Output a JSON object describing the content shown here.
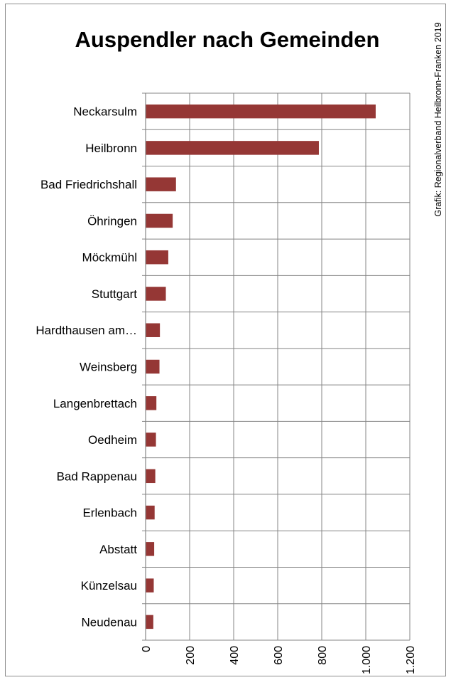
{
  "chart_data": {
    "type": "bar",
    "orientation": "horizontal",
    "title": "Auspendler nach Gemeinden",
    "credit": "Grafik: Regionalverband Heilbronn-Franken 2019",
    "categories": [
      "Neckarsulm",
      "Heilbronn",
      "Bad Friedrichshall",
      "Öhringen",
      "Möckmühl",
      "Stuttgart",
      "Hardthausen am…",
      "Weinsberg",
      "Langenbrettach",
      "Oedheim",
      "Bad Rappenau",
      "Erlenbach",
      "Abstatt",
      "Künzelsau",
      "Neudenau"
    ],
    "values": [
      1045,
      787,
      138,
      123,
      103,
      92,
      65,
      63,
      49,
      47,
      44,
      41,
      39,
      37,
      35
    ],
    "xlim": [
      0,
      1200
    ],
    "xticks": [
      0,
      200,
      400,
      600,
      800,
      1000,
      1200
    ],
    "xtick_labels": [
      "0",
      "200",
      "400",
      "600",
      "800",
      "1.000",
      "1.200"
    ],
    "grid": true,
    "bar_color": "#953735"
  }
}
